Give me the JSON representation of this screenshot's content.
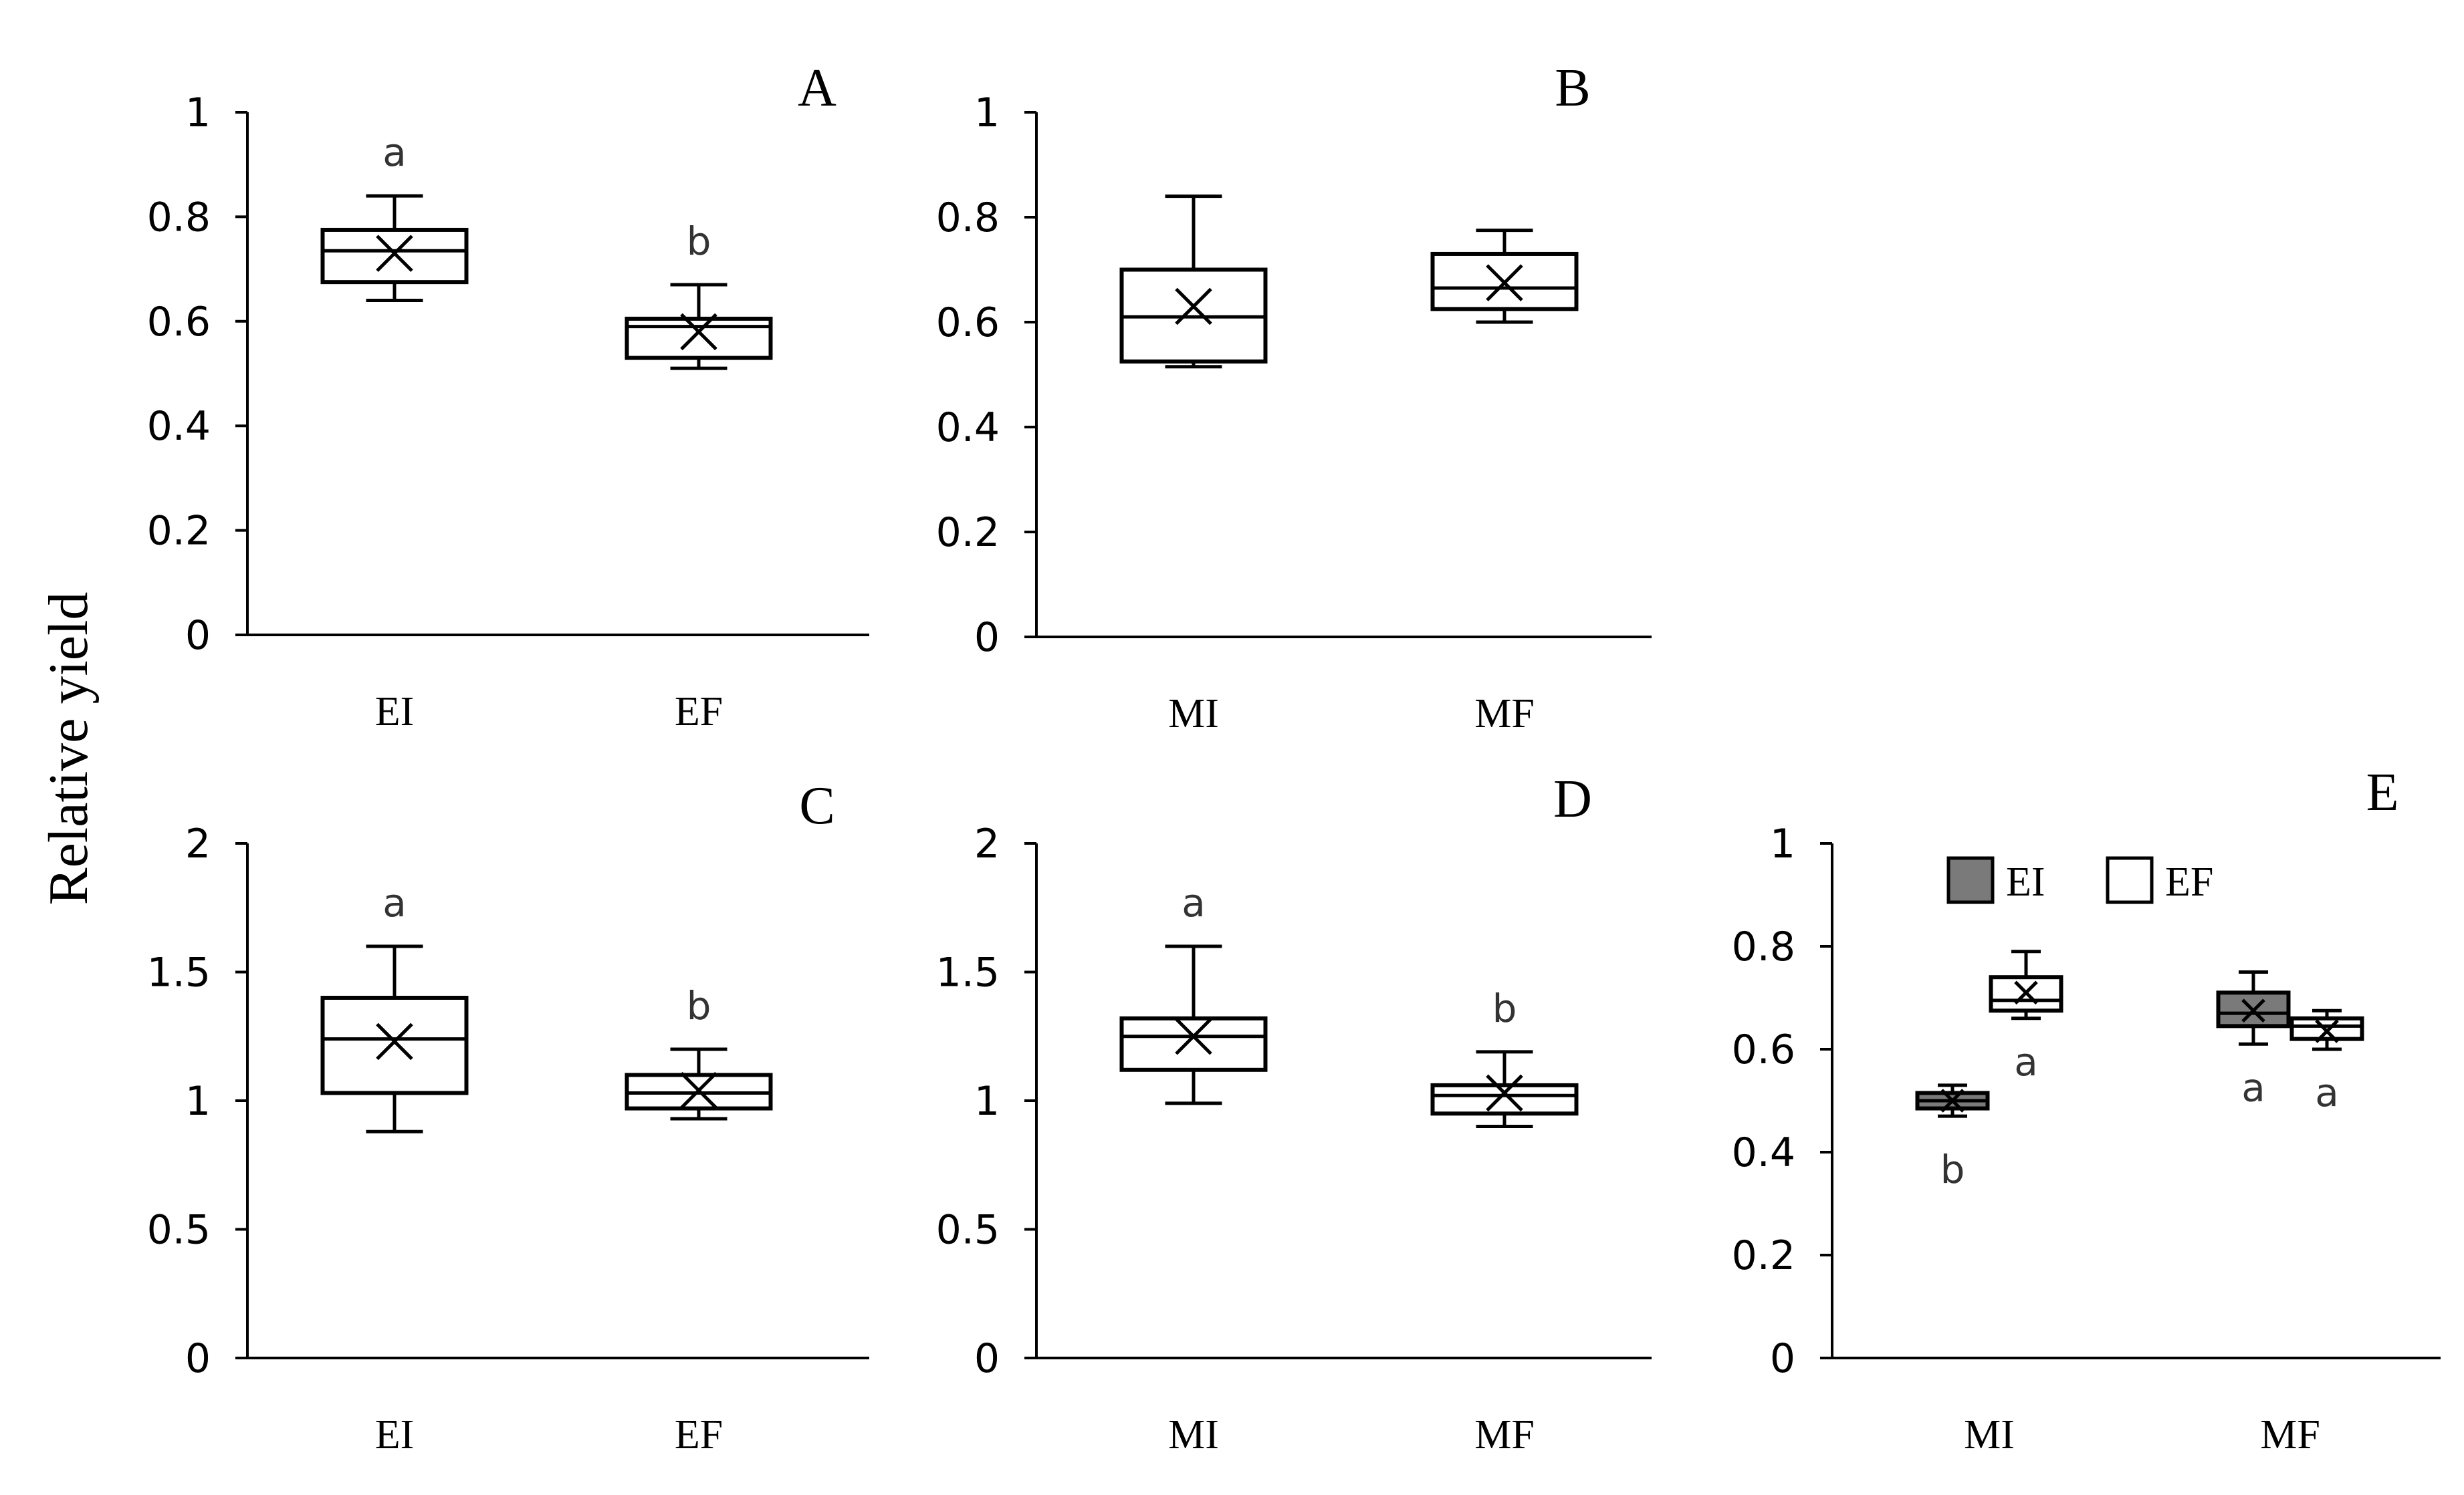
{
  "figure": {
    "shared_ylabel": "Relative yield",
    "legend": {
      "items": [
        {
          "label": "EI",
          "color": "#7a7a7a"
        },
        {
          "label": "EF",
          "color": "#ffffff"
        }
      ]
    }
  },
  "chart_data": [
    {
      "panel": "A",
      "type": "box",
      "categories": [
        "EI",
        "EF"
      ],
      "yticks": [
        "0",
        "0.2",
        "0.4",
        "0.6",
        "0.8",
        "1"
      ],
      "ylim": [
        0,
        1
      ],
      "series": [
        {
          "boxes": [
            {
              "category": "EI",
              "min": 0.64,
              "q1": 0.675,
              "median": 0.735,
              "q3": 0.775,
              "max": 0.84,
              "mean": 0.73,
              "sig": "a"
            },
            {
              "category": "EF",
              "min": 0.51,
              "q1": 0.53,
              "median": 0.59,
              "q3": 0.605,
              "max": 0.67,
              "mean": 0.58,
              "sig": "b"
            }
          ]
        }
      ]
    },
    {
      "panel": "B",
      "type": "box",
      "categories": [
        "MI",
        "MF"
      ],
      "yticks": [
        "0",
        "0.2",
        "0.4",
        "0.6",
        "0.8",
        "1"
      ],
      "ylim": [
        0,
        1
      ],
      "series": [
        {
          "boxes": [
            {
              "category": "MI",
              "min": 0.515,
              "q1": 0.525,
              "median": 0.61,
              "q3": 0.7,
              "max": 0.84,
              "mean": 0.63,
              "sig": ""
            },
            {
              "category": "MF",
              "min": 0.6,
              "q1": 0.625,
              "median": 0.665,
              "q3": 0.73,
              "max": 0.775,
              "mean": 0.675,
              "sig": ""
            }
          ]
        }
      ]
    },
    {
      "panel": "C",
      "type": "box",
      "categories": [
        "EI",
        "EF"
      ],
      "yticks": [
        "0",
        "0.5",
        "1",
        "1.5",
        "2"
      ],
      "ylim": [
        0,
        2
      ],
      "series": [
        {
          "boxes": [
            {
              "category": "EI",
              "min": 0.88,
              "q1": 1.03,
              "median": 1.24,
              "q3": 1.4,
              "max": 1.6,
              "mean": 1.23,
              "sig": "a"
            },
            {
              "category": "EF",
              "min": 0.93,
              "q1": 0.97,
              "median": 1.03,
              "q3": 1.1,
              "max": 1.2,
              "mean": 1.04,
              "sig": "b"
            }
          ]
        }
      ]
    },
    {
      "panel": "D",
      "type": "box",
      "categories": [
        "MI",
        "MF"
      ],
      "yticks": [
        "0",
        "0.5",
        "1",
        "1.5",
        "2"
      ],
      "ylim": [
        0,
        2
      ],
      "series": [
        {
          "boxes": [
            {
              "category": "MI",
              "min": 0.99,
              "q1": 1.12,
              "median": 1.25,
              "q3": 1.32,
              "max": 1.6,
              "mean": 1.25,
              "sig": "a"
            },
            {
              "category": "MF",
              "min": 0.9,
              "q1": 0.95,
              "median": 1.02,
              "q3": 1.06,
              "max": 1.19,
              "mean": 1.03,
              "sig": "b"
            }
          ]
        }
      ]
    },
    {
      "panel": "E",
      "type": "box",
      "categories": [
        "MI",
        "MF"
      ],
      "yticks": [
        "0",
        "0.2",
        "0.4",
        "0.6",
        "0.8",
        "1"
      ],
      "ylim": [
        0,
        1
      ],
      "series": [
        {
          "name": "EI",
          "color": "#7a7a7a",
          "boxes": [
            {
              "category": "MI",
              "min": 0.47,
              "q1": 0.485,
              "median": 0.5,
              "q3": 0.515,
              "max": 0.53,
              "mean": 0.5,
              "sig": "b"
            },
            {
              "category": "MF",
              "min": 0.61,
              "q1": 0.645,
              "median": 0.67,
              "q3": 0.71,
              "max": 0.75,
              "mean": 0.675,
              "sig": "a"
            }
          ]
        },
        {
          "name": "EF",
          "color": "#ffffff",
          "boxes": [
            {
              "category": "MI",
              "min": 0.66,
              "q1": 0.675,
              "median": 0.695,
              "q3": 0.74,
              "max": 0.79,
              "mean": 0.71,
              "sig": "a"
            },
            {
              "category": "MF",
              "min": 0.6,
              "q1": 0.62,
              "median": 0.645,
              "q3": 0.66,
              "max": 0.675,
              "mean": 0.635,
              "sig": "a"
            }
          ]
        }
      ]
    }
  ]
}
